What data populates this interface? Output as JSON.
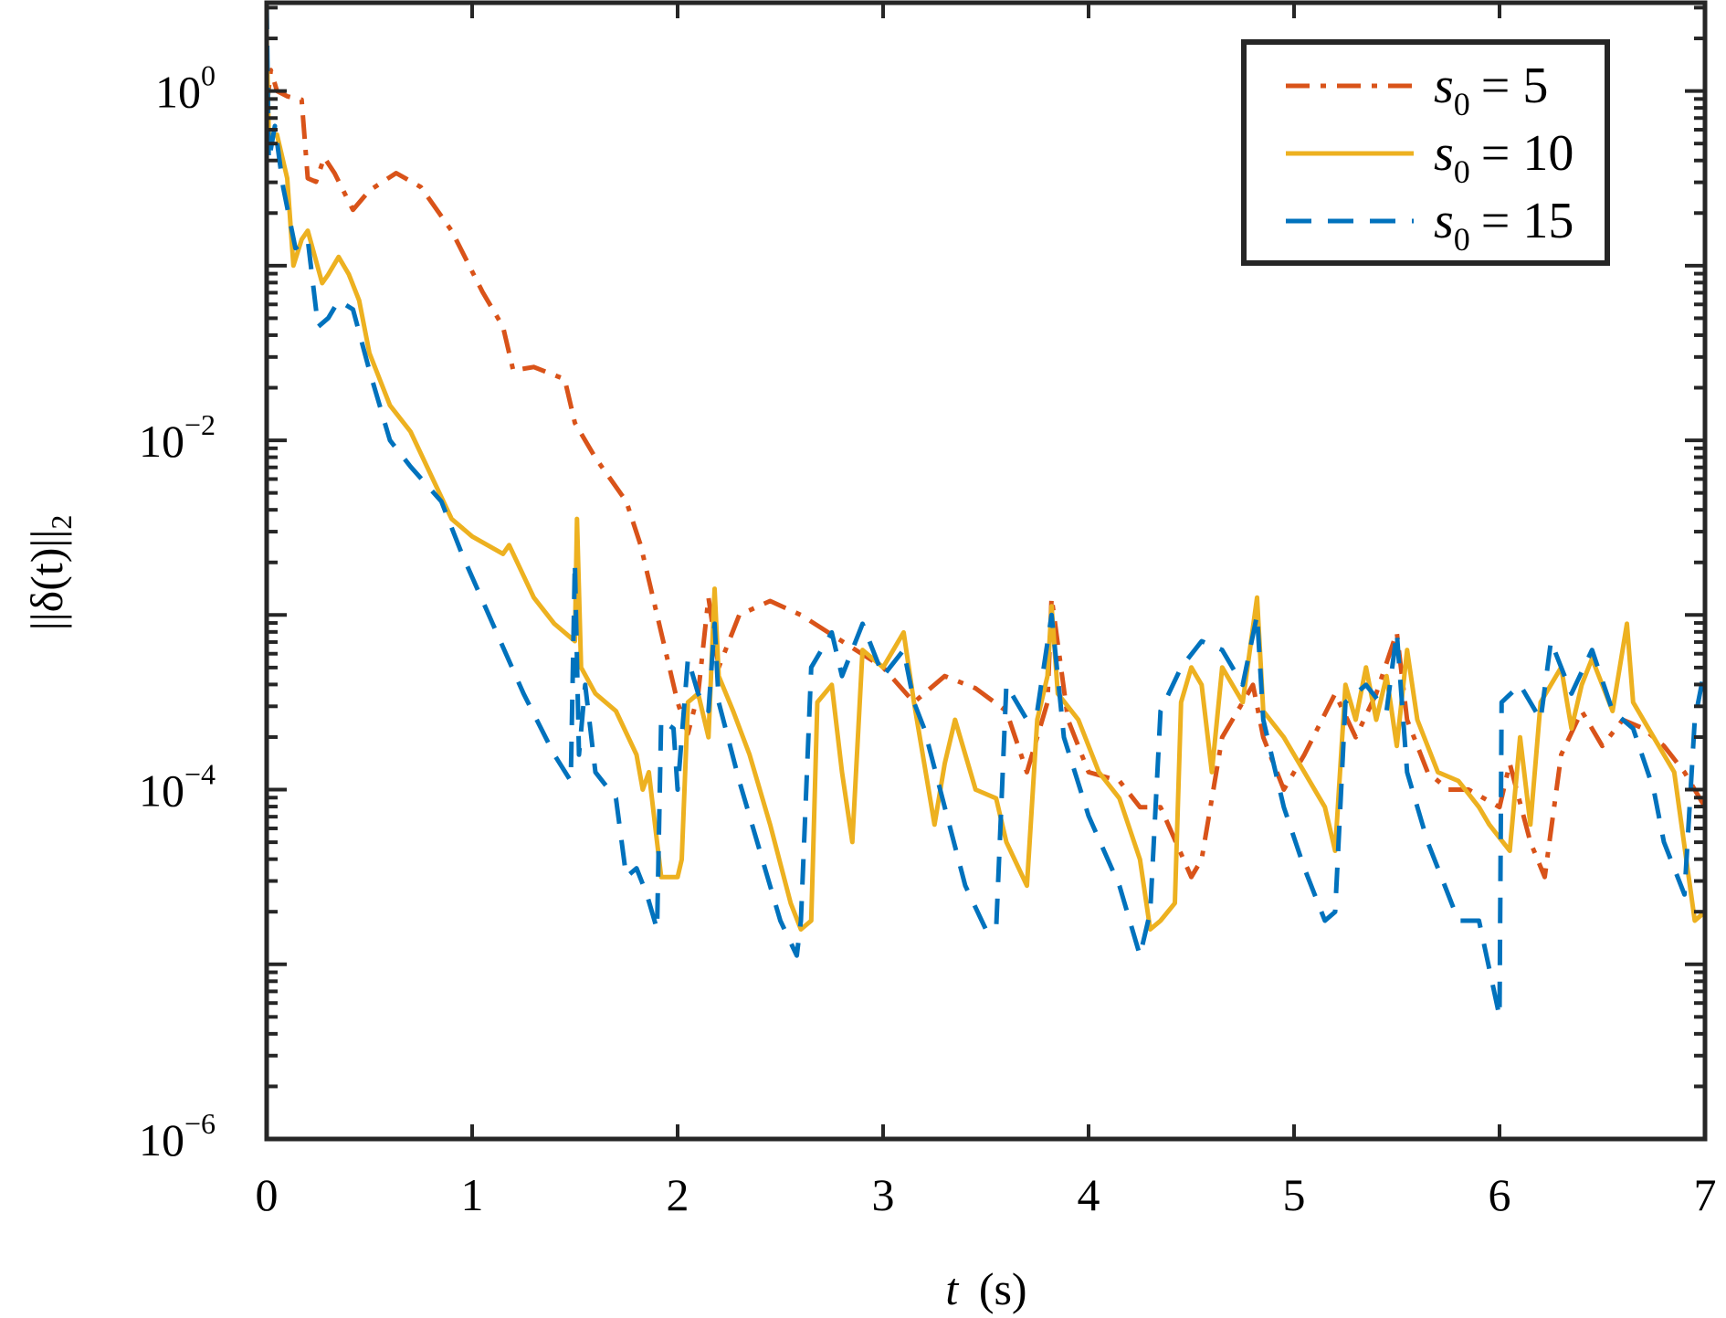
{
  "chart_data": {
    "type": "line",
    "title": "",
    "xlabel": {
      "var": "t",
      "unit": "(s)"
    },
    "ylabel": {
      "text": "||δ(t)||",
      "sub": "2"
    },
    "xlim": [
      0,
      7
    ],
    "ylim": [
      1e-06,
      3.1623
    ],
    "yscale": "log",
    "grid": false,
    "legend_position": "top-right",
    "x_ticks": [
      "0",
      "1",
      "2",
      "3",
      "4",
      "5",
      "6",
      "7"
    ],
    "y_ticks": [
      {
        "base": "10",
        "exp": "0",
        "log10": 0
      },
      {
        "base": "10",
        "exp": "−2",
        "log10": -2
      },
      {
        "base": "10",
        "exp": "−4",
        "log10": -4
      },
      {
        "base": "10",
        "exp": "−6",
        "log10": -6
      }
    ],
    "series": [
      {
        "name": "s0 = 5",
        "label_var": "s",
        "label_sub": "0",
        "label_rest": "= 5",
        "color": "#D95319",
        "style": "dash-dot",
        "t": [
          0.0,
          0.02,
          0.05,
          0.1,
          0.17,
          0.2,
          0.24,
          0.28,
          0.33,
          0.42,
          0.5,
          0.63,
          0.75,
          0.9,
          1.05,
          1.15,
          1.2,
          1.3,
          1.45,
          1.5,
          1.6,
          1.75,
          1.82,
          1.92,
          2.0,
          2.05,
          2.1,
          2.15,
          2.2,
          2.3,
          2.45,
          2.6,
          2.8,
          3.0,
          3.15,
          3.3,
          3.45,
          3.6,
          3.7,
          3.8,
          3.82,
          3.9,
          4.0,
          4.15,
          4.25,
          4.35,
          4.5,
          4.55,
          4.65,
          4.8,
          4.85,
          4.95,
          5.05,
          5.2,
          5.3,
          5.4,
          5.5,
          5.55,
          5.65,
          5.75,
          5.85,
          6.0,
          6.05,
          6.15,
          6.22,
          6.3,
          6.4,
          6.5,
          6.6,
          6.7,
          6.8,
          6.9,
          7.0
        ],
        "log10_y": [
          -0.1,
          0.12,
          0.0,
          -0.03,
          -0.05,
          -0.5,
          -0.52,
          -0.38,
          -0.47,
          -0.68,
          -0.57,
          -0.47,
          -0.55,
          -0.8,
          -1.15,
          -1.35,
          -1.6,
          -1.58,
          -1.65,
          -1.9,
          -2.1,
          -2.35,
          -2.6,
          -3.1,
          -3.5,
          -3.68,
          -3.45,
          -2.9,
          -3.3,
          -3.0,
          -2.92,
          -3.0,
          -3.15,
          -3.3,
          -3.5,
          -3.35,
          -3.42,
          -3.55,
          -3.9,
          -3.5,
          -2.9,
          -3.6,
          -3.9,
          -3.95,
          -4.1,
          -4.1,
          -4.5,
          -4.4,
          -3.7,
          -3.4,
          -3.7,
          -4.0,
          -3.8,
          -3.45,
          -3.7,
          -3.45,
          -3.1,
          -3.6,
          -3.9,
          -4.0,
          -4.0,
          -4.1,
          -3.85,
          -4.3,
          -4.5,
          -3.8,
          -3.55,
          -3.75,
          -3.6,
          -3.65,
          -3.75,
          -3.9,
          -4.1
        ]
      },
      {
        "name": "s0 = 10",
        "label_var": "s",
        "label_sub": "0",
        "label_rest": "= 10",
        "color": "#EDB120",
        "style": "solid",
        "t": [
          0.0,
          0.01,
          0.05,
          0.1,
          0.13,
          0.17,
          0.2,
          0.27,
          0.3,
          0.35,
          0.4,
          0.45,
          0.5,
          0.6,
          0.7,
          0.8,
          0.9,
          1.0,
          1.15,
          1.18,
          1.3,
          1.4,
          1.5,
          1.51,
          1.53,
          1.6,
          1.7,
          1.8,
          1.83,
          1.86,
          1.9,
          1.92,
          2.0,
          2.02,
          2.05,
          2.1,
          2.15,
          2.18,
          2.2,
          2.27,
          2.35,
          2.45,
          2.55,
          2.6,
          2.65,
          2.68,
          2.75,
          2.8,
          2.85,
          2.9,
          3.0,
          3.1,
          3.15,
          3.25,
          3.3,
          3.35,
          3.45,
          3.55,
          3.6,
          3.7,
          3.75,
          3.8,
          3.82,
          3.85,
          3.95,
          4.05,
          4.15,
          4.25,
          4.3,
          4.35,
          4.42,
          4.45,
          4.5,
          4.55,
          4.6,
          4.65,
          4.75,
          4.82,
          4.85,
          4.95,
          5.05,
          5.15,
          5.2,
          5.25,
          5.3,
          5.35,
          5.4,
          5.45,
          5.5,
          5.55,
          5.6,
          5.7,
          5.8,
          5.9,
          5.95,
          6.05,
          6.1,
          6.15,
          6.2,
          6.3,
          6.35,
          6.4,
          6.45,
          6.55,
          6.62,
          6.65,
          6.75,
          6.85,
          6.95,
          7.0
        ],
        "log10_y": [
          0.3,
          -0.25,
          -0.25,
          -0.5,
          -1.0,
          -0.85,
          -0.8,
          -1.1,
          -1.05,
          -0.95,
          -1.05,
          -1.2,
          -1.5,
          -1.8,
          -1.95,
          -2.2,
          -2.45,
          -2.55,
          -2.65,
          -2.6,
          -2.9,
          -3.05,
          -3.15,
          -2.45,
          -3.3,
          -3.45,
          -3.55,
          -3.8,
          -4.0,
          -3.9,
          -4.3,
          -4.5,
          -4.5,
          -4.4,
          -3.5,
          -3.45,
          -3.7,
          -2.85,
          -3.35,
          -3.55,
          -3.8,
          -4.2,
          -4.65,
          -4.8,
          -4.75,
          -3.5,
          -3.4,
          -3.9,
          -4.3,
          -3.2,
          -3.3,
          -3.1,
          -3.5,
          -4.2,
          -3.85,
          -3.6,
          -4.0,
          -4.05,
          -4.3,
          -4.55,
          -3.6,
          -3.35,
          -2.95,
          -3.45,
          -3.6,
          -3.9,
          -4.05,
          -4.4,
          -4.8,
          -4.75,
          -4.65,
          -3.5,
          -3.3,
          -3.4,
          -3.9,
          -3.3,
          -3.5,
          -2.9,
          -3.55,
          -3.7,
          -3.9,
          -4.1,
          -4.35,
          -3.4,
          -3.6,
          -3.3,
          -3.6,
          -3.35,
          -3.75,
          -3.2,
          -3.6,
          -3.9,
          -3.95,
          -4.1,
          -4.2,
          -4.35,
          -3.7,
          -4.2,
          -3.5,
          -3.3,
          -3.65,
          -3.4,
          -3.25,
          -3.55,
          -3.05,
          -3.5,
          -3.7,
          -3.9,
          -4.75,
          -4.7
        ]
      },
      {
        "name": "s0 = 15",
        "label_var": "s",
        "label_sub": "0",
        "label_rest": "= 15",
        "color": "#0072BD",
        "style": "dashed",
        "t": [
          0.0,
          0.01,
          0.04,
          0.08,
          0.14,
          0.2,
          0.25,
          0.3,
          0.35,
          0.42,
          0.5,
          0.6,
          0.7,
          0.85,
          0.95,
          1.1,
          1.25,
          1.4,
          1.48,
          1.5,
          1.52,
          1.55,
          1.6,
          1.7,
          1.75,
          1.8,
          1.85,
          1.9,
          1.92,
          1.98,
          2.0,
          2.05,
          2.1,
          2.15,
          2.18,
          2.2,
          2.3,
          2.4,
          2.5,
          2.58,
          2.6,
          2.65,
          2.75,
          2.8,
          2.9,
          3.0,
          3.1,
          3.15,
          3.2,
          3.3,
          3.4,
          3.5,
          3.55,
          3.6,
          3.7,
          3.75,
          3.82,
          3.88,
          4.0,
          4.15,
          4.25,
          4.3,
          4.35,
          4.45,
          4.55,
          4.65,
          4.75,
          4.82,
          4.85,
          4.95,
          5.05,
          5.15,
          5.2,
          5.25,
          5.35,
          5.45,
          5.5,
          5.55,
          5.65,
          5.75,
          5.8,
          5.9,
          6.0,
          6.01,
          6.1,
          6.2,
          6.25,
          6.35,
          6.45,
          6.55,
          6.65,
          6.75,
          6.8,
          6.9,
          6.95,
          7.0
        ],
        "log10_y": [
          0.5,
          -0.4,
          -0.2,
          -0.55,
          -0.9,
          -0.85,
          -1.35,
          -1.3,
          -1.2,
          -1.25,
          -1.6,
          -2.0,
          -2.15,
          -2.35,
          -2.65,
          -3.05,
          -3.45,
          -3.8,
          -3.95,
          -2.7,
          -3.8,
          -3.4,
          -3.9,
          -4.05,
          -4.5,
          -4.45,
          -4.6,
          -4.8,
          -3.6,
          -3.65,
          -4.0,
          -3.25,
          -3.45,
          -3.55,
          -3.05,
          -3.5,
          -3.95,
          -4.35,
          -4.75,
          -4.95,
          -4.75,
          -3.3,
          -3.1,
          -3.35,
          -3.05,
          -3.35,
          -3.2,
          -3.5,
          -3.65,
          -4.1,
          -4.55,
          -4.8,
          -4.8,
          -3.4,
          -3.6,
          -3.55,
          -3.0,
          -3.7,
          -4.15,
          -4.55,
          -4.95,
          -4.7,
          -3.55,
          -3.3,
          -3.15,
          -3.2,
          -3.4,
          -3.0,
          -3.6,
          -4.1,
          -4.45,
          -4.75,
          -4.7,
          -3.5,
          -3.4,
          -3.55,
          -3.1,
          -3.9,
          -4.3,
          -4.6,
          -4.75,
          -4.75,
          -5.3,
          -3.5,
          -3.4,
          -3.6,
          -3.15,
          -3.45,
          -3.2,
          -3.55,
          -3.65,
          -4.0,
          -4.3,
          -4.6,
          -3.6,
          -3.3
        ]
      }
    ]
  }
}
